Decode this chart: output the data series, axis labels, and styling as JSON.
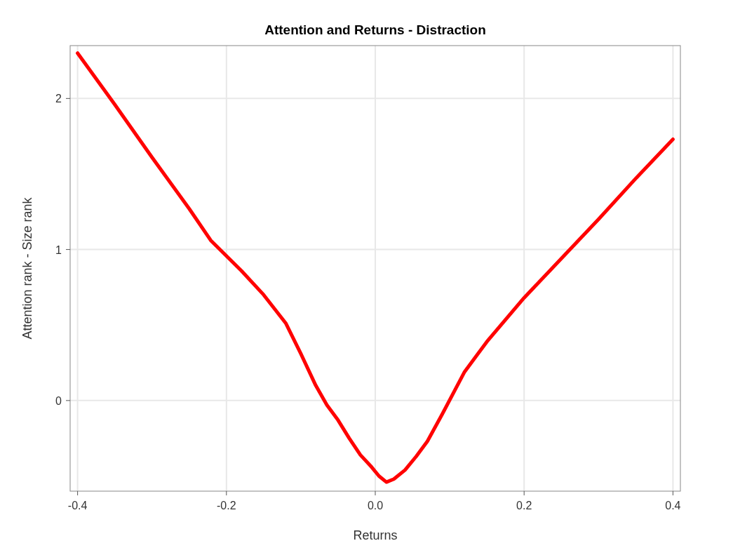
{
  "chart_data": {
    "type": "line",
    "title": "Attention and  Returns - Distraction",
    "xlabel": "Returns",
    "ylabel": "Attention rank - Size rank",
    "x": [
      -0.4,
      -0.35,
      -0.3,
      -0.25,
      -0.221,
      -0.18,
      -0.15,
      -0.12,
      -0.1,
      -0.08,
      -0.065,
      -0.05,
      -0.035,
      -0.02,
      -0.005,
      0.005,
      0.015,
      0.025,
      0.04,
      0.055,
      0.07,
      0.09,
      0.12,
      0.15,
      0.2,
      0.25,
      0.3,
      0.35,
      0.4
    ],
    "series": [
      {
        "color": "#ff0000",
        "values": [
          2.3,
          1.96,
          1.61,
          1.27,
          1.06,
          0.86,
          0.7,
          0.51,
          0.31,
          0.1,
          -0.03,
          -0.13,
          -0.25,
          -0.36,
          -0.44,
          -0.5,
          -0.54,
          -0.52,
          -0.46,
          -0.37,
          -0.27,
          -0.09,
          0.19,
          0.39,
          0.68,
          0.94,
          1.2,
          1.47,
          1.73
        ]
      }
    ],
    "xlim": [
      -0.41,
      0.41
    ],
    "ylim": [
      -0.6,
      2.35
    ],
    "xticks": [
      -0.4,
      -0.2,
      {
        "value": 0,
        "label": "0.0"
      },
      0.2,
      0.4
    ],
    "yticks": [
      0,
      1,
      2
    ],
    "grid": true,
    "marker": "none",
    "line_style": "solid"
  }
}
